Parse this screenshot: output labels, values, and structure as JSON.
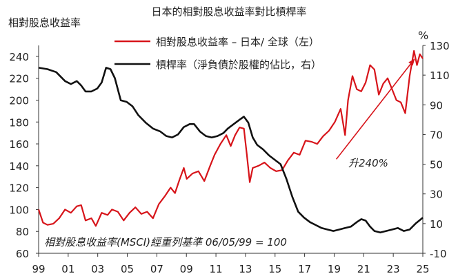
{
  "chart_data": {
    "type": "line",
    "title": "日本的相對股息收益率對比槓桿率",
    "left_axis_title": "相對股息收益率",
    "right_axis_unit": "%",
    "x_ticks": [
      "99",
      "01",
      "03",
      "05",
      "07",
      "09",
      "11",
      "13",
      "15",
      "17",
      "19",
      "21",
      "23",
      "25"
    ],
    "x_range": [
      1999,
      2025.2
    ],
    "y_left": {
      "ticks": [
        60,
        80,
        100,
        120,
        140,
        160,
        180,
        200,
        220,
        240
      ],
      "range": [
        60,
        250
      ]
    },
    "y_right": {
      "ticks": [
        -10,
        10,
        30,
        50,
        70,
        90,
        110,
        130
      ],
      "range": [
        -10,
        130
      ]
    },
    "grid": false,
    "legend_position": "top",
    "series": [
      {
        "name": "相對股息收益率 – 日本/ 全球（左）",
        "axis": "left",
        "color": "#d7141a",
        "x": [
          1999.0,
          1999.3,
          1999.6,
          2000.0,
          2000.4,
          2000.8,
          2001.2,
          2001.6,
          2001.9,
          2002.2,
          2002.6,
          2002.9,
          2003.3,
          2003.7,
          2004.0,
          2004.4,
          2004.8,
          2005.2,
          2005.6,
          2006.0,
          2006.4,
          2006.8,
          2007.2,
          2007.6,
          2008.0,
          2008.3,
          2008.6,
          2008.9,
          2009.1,
          2009.5,
          2009.9,
          2010.3,
          2010.7,
          2011.0,
          2011.4,
          2011.8,
          2012.1,
          2012.4,
          2012.7,
          2013.0,
          2013.2,
          2013.4,
          2013.6,
          2014.0,
          2014.4,
          2014.8,
          2015.2,
          2015.6,
          2016.0,
          2016.4,
          2016.8,
          2017.2,
          2017.6,
          2018.0,
          2018.4,
          2018.8,
          2019.2,
          2019.6,
          2019.9,
          2020.1,
          2020.4,
          2020.7,
          2021.0,
          2021.3,
          2021.6,
          2021.9,
          2022.2,
          2022.5,
          2022.8,
          2023.1,
          2023.4,
          2023.7,
          2024.0,
          2024.3,
          2024.6,
          2024.8,
          2025.0,
          2025.2
        ],
        "values": [
          100,
          88,
          86,
          87,
          92,
          100,
          97,
          103,
          104,
          90,
          92,
          85,
          97,
          95,
          100,
          98,
          90,
          97,
          102,
          96,
          98,
          92,
          105,
          112,
          120,
          115,
          127,
          138,
          128,
          133,
          135,
          126,
          140,
          150,
          160,
          168,
          158,
          168,
          175,
          174,
          150,
          125,
          138,
          140,
          143,
          138,
          135,
          136,
          145,
          152,
          150,
          163,
          162,
          160,
          167,
          172,
          180,
          192,
          168,
          200,
          222,
          210,
          208,
          216,
          232,
          228,
          205,
          215,
          220,
          210,
          200,
          198,
          188,
          222,
          245,
          232,
          242,
          238
        ]
      },
      {
        "name": "槓桿率（淨負債於股權的佔比，右）",
        "axis": "right",
        "color": "#111111",
        "x": [
          1999.0,
          1999.6,
          2000.2,
          2000.8,
          2001.2,
          2001.6,
          2001.9,
          2002.2,
          2002.6,
          2003.0,
          2003.3,
          2003.6,
          2003.9,
          2004.2,
          2004.6,
          2005.0,
          2005.4,
          2005.8,
          2006.3,
          2006.8,
          2007.3,
          2007.7,
          2008.1,
          2008.5,
          2008.9,
          2009.3,
          2009.6,
          2010.0,
          2010.4,
          2010.8,
          2011.2,
          2011.6,
          2011.9,
          2012.3,
          2012.7,
          2013.0,
          2013.3,
          2013.6,
          2013.9,
          2014.3,
          2014.7,
          2015.1,
          2015.5,
          2015.9,
          2016.3,
          2016.7,
          2017.1,
          2017.5,
          2017.9,
          2018.3,
          2018.7,
          2019.1,
          2019.5,
          2019.9,
          2020.3,
          2020.7,
          2021.0,
          2021.3,
          2021.6,
          2021.9,
          2022.3,
          2022.7,
          2023.1,
          2023.5,
          2023.9,
          2024.3,
          2024.7,
          2025.2
        ],
        "values": [
          115,
          114,
          112,
          106,
          104,
          106,
          103,
          99,
          99,
          101,
          105,
          115,
          114,
          108,
          93,
          92,
          89,
          83,
          78,
          74,
          72,
          69,
          68,
          70,
          75,
          77,
          77,
          72,
          69,
          68,
          69,
          71,
          74,
          77,
          80,
          82,
          78,
          68,
          63,
          60,
          56,
          53,
          50,
          40,
          28,
          18,
          14,
          11,
          9,
          7,
          6,
          5,
          6,
          7,
          8,
          11,
          13,
          12,
          8,
          5,
          4,
          5,
          6,
          7,
          5,
          6,
          10,
          14
        ]
      }
    ],
    "annotations": {
      "arrow_label": "升240%",
      "arrow_from": {
        "x": 2019.3,
        "y": 146
      },
      "arrow_to": {
        "x": 2024.6,
        "y": 237
      },
      "footnote": "相對股息收益率(MSCI)經重列基準 06/05/99 = 100"
    }
  }
}
